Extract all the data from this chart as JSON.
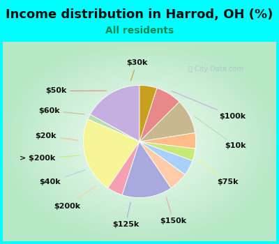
{
  "title": "Income distribution in Harrod, OH (%)",
  "subtitle": "All residents",
  "title_color": "#111111",
  "subtitle_color": "#008855",
  "bg_cyan": "#00ffff",
  "bg_chart_gradient_center": "#f5faf5",
  "bg_chart_gradient_edge": "#b8e8c8",
  "watermark": "Ⓜ City-Data.com",
  "labels": [
    "$100k",
    "$10k",
    "$75k",
    "$150k",
    "$125k",
    "$200k",
    "$40k",
    "> $200k",
    "$20k",
    "$60k",
    "$50k",
    "$30k"
  ],
  "values": [
    17.0,
    1.5,
    22.0,
    4.5,
    14.5,
    5.5,
    4.5,
    3.5,
    4.5,
    10.0,
    7.5,
    5.0
  ],
  "colors": [
    "#c5aee0",
    "#b8ddb0",
    "#f5f595",
    "#f5a0b0",
    "#a8aadd",
    "#ffccaa",
    "#a8d0f8",
    "#c8e878",
    "#ffbb88",
    "#c8b890",
    "#e88888",
    "#c8a020"
  ],
  "startangle": 90,
  "label_fontsize": 8,
  "title_fontsize": 13,
  "subtitle_fontsize": 10,
  "figsize": [
    4.0,
    3.5
  ],
  "dpi": 100
}
